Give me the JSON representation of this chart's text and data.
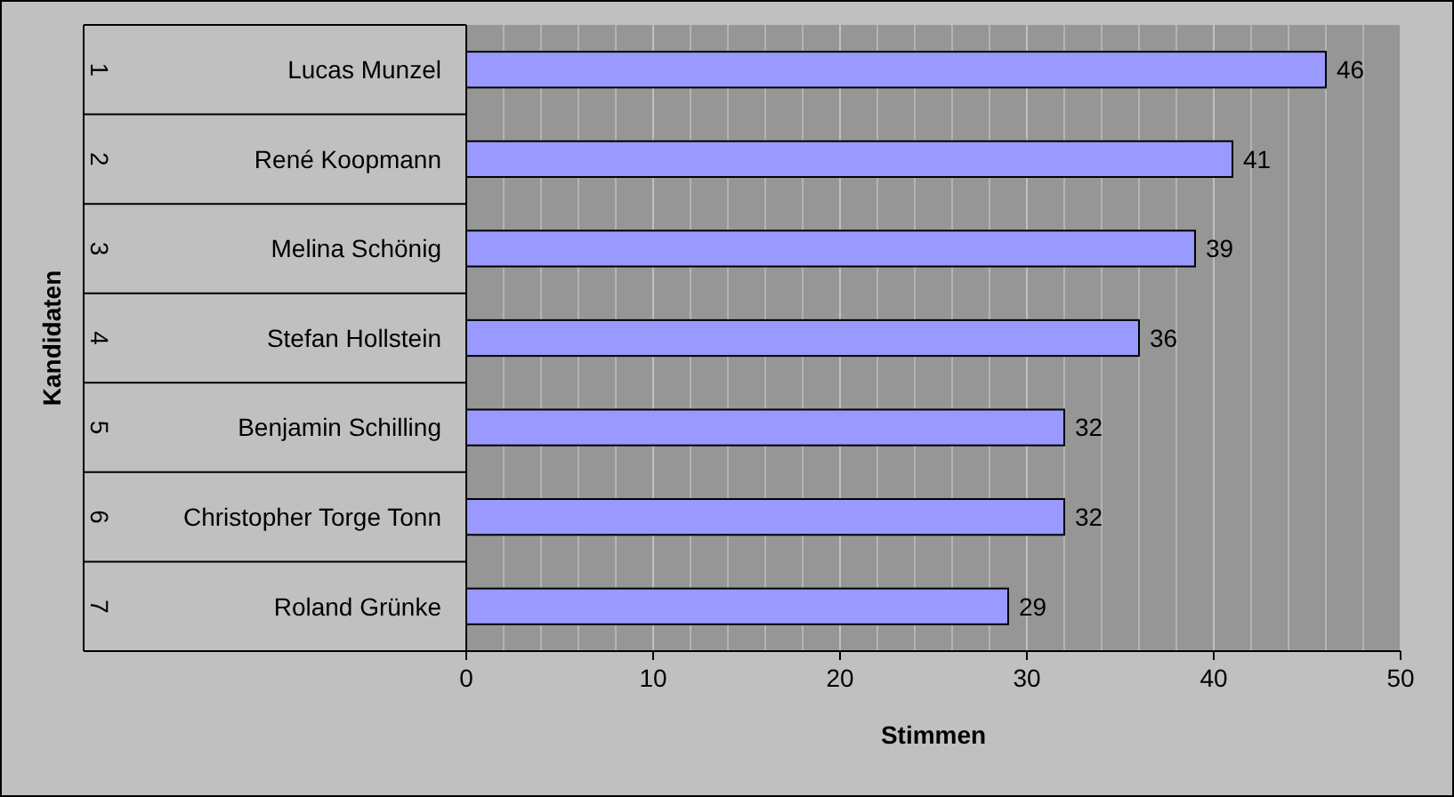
{
  "chart_data": {
    "type": "bar",
    "orientation": "horizontal",
    "xlabel": "Stimmen",
    "ylabel": "Kandidaten",
    "categories": [
      "Lucas Munzel",
      "René Koopmann",
      "Melina Schönig",
      "Stefan Hollstein",
      "Benjamin Schilling",
      "Christopher Torge Tonn",
      "Roland Grünke"
    ],
    "annotations": [
      "1",
      "2",
      "3",
      "4",
      "5",
      "6",
      "7"
    ],
    "values": [
      46,
      41,
      39,
      36,
      32,
      32,
      29
    ],
    "color": "#9999ff",
    "data_labels": true,
    "xlim": [
      0,
      50
    ],
    "xticks": [
      0,
      {
        "value": 2,
        "label": null
      },
      {
        "value": 4,
        "label": null
      },
      {
        "value": 6,
        "label": null
      },
      {
        "value": 8,
        "label": null
      },
      10,
      {
        "value": 12,
        "label": null
      },
      {
        "value": 14,
        "label": null
      },
      {
        "value": 16,
        "label": null
      },
      {
        "value": 18,
        "label": null
      },
      20,
      {
        "value": 22,
        "label": null
      },
      {
        "value": 24,
        "label": null
      },
      {
        "value": 26,
        "label": null
      },
      {
        "value": 28,
        "label": null
      },
      30,
      {
        "value": 32,
        "label": null
      },
      {
        "value": 34,
        "label": null
      },
      {
        "value": 36,
        "label": null
      },
      {
        "value": 38,
        "label": null
      },
      40,
      {
        "value": 42,
        "label": null
      },
      {
        "value": 44,
        "label": null
      },
      {
        "value": 46,
        "label": null
      },
      {
        "value": 48,
        "label": null
      },
      50
    ],
    "grid": "x"
  }
}
